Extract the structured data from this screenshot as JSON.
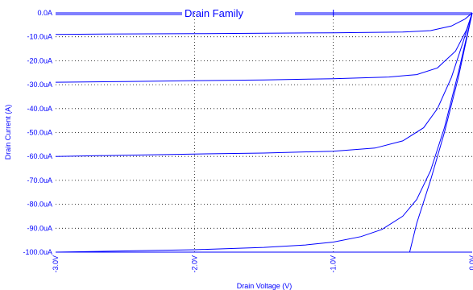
{
  "chart_data": {
    "type": "line",
    "title": "Drain Family",
    "xlabel": "Drain Voltage (V)",
    "ylabel": "Drain Current (A)",
    "xlim": [
      -3.0,
      0.0
    ],
    "ylim": [
      -100.0,
      0.0
    ],
    "x_ticks": [
      {
        "value": -3.0,
        "label": "-3.0V"
      },
      {
        "value": -2.0,
        "label": "-2.0V"
      },
      {
        "value": -1.0,
        "label": "-1.0V"
      },
      {
        "value": 0.0,
        "label": "0.0V"
      }
    ],
    "y_ticks": [
      {
        "value": 0,
        "label": "0.0A"
      },
      {
        "value": -10,
        "label": "-10.0uA"
      },
      {
        "value": -20,
        "label": "-20.0uA"
      },
      {
        "value": -30,
        "label": "-30.0uA"
      },
      {
        "value": -40,
        "label": "-40.0uA"
      },
      {
        "value": -50,
        "label": "-50.0uA"
      },
      {
        "value": -60,
        "label": "-60.0uA"
      },
      {
        "value": -70,
        "label": "-70.0uA"
      },
      {
        "value": -80,
        "label": "-80.0uA"
      },
      {
        "value": -90,
        "label": "-90.0uA"
      },
      {
        "value": -100,
        "label": "-100.0uA"
      }
    ],
    "grid": true,
    "grid_style": "dotted",
    "line_color": "#0000ff",
    "series": [
      {
        "x": [
          -3.0,
          -2.5,
          -2.0,
          -1.5,
          -1.0,
          -0.5,
          -0.3,
          -0.15,
          -0.05,
          0.0
        ],
        "y": [
          -9.0,
          -8.8,
          -8.7,
          -8.5,
          -8.3,
          -8.0,
          -7.4,
          -5.5,
          -2.5,
          0.0
        ]
      },
      {
        "x": [
          -3.0,
          -2.5,
          -2.0,
          -1.5,
          -1.0,
          -0.6,
          -0.4,
          -0.25,
          -0.12,
          -0.04,
          0.0
        ],
        "y": [
          -29.0,
          -28.7,
          -28.3,
          -28.0,
          -27.5,
          -26.8,
          -25.8,
          -23.0,
          -16.0,
          -7.0,
          0.0
        ]
      },
      {
        "x": [
          -3.0,
          -2.5,
          -2.0,
          -1.5,
          -1.0,
          -0.7,
          -0.5,
          -0.35,
          -0.25,
          -0.15,
          -0.07,
          0.0
        ],
        "y": [
          -60.0,
          -59.5,
          -59.0,
          -58.6,
          -57.8,
          -56.5,
          -53.5,
          -48.0,
          -40.0,
          -27.0,
          -13.0,
          0.0
        ]
      },
      {
        "x": [
          -3.0,
          -2.5,
          -2.0,
          -1.5,
          -1.2,
          -1.0,
          -0.8,
          -0.65,
          -0.5,
          -0.4,
          -0.3,
          -0.2,
          -0.1,
          0.0
        ],
        "y": [
          -100.0,
          -99.5,
          -99.0,
          -98.0,
          -97.0,
          -95.8,
          -93.5,
          -90.5,
          -85.0,
          -78.0,
          -66.0,
          -48.0,
          -25.0,
          0.0
        ]
      },
      {
        "x": [
          -3.0,
          -2.5,
          -2.0,
          -1.5,
          -1.0,
          -0.6,
          -0.45,
          -0.4,
          -0.3,
          -0.2,
          -0.1,
          0.0
        ],
        "y": [
          -100.0,
          -100.0,
          -100.0,
          -100.0,
          -100.0,
          -100.0,
          -100.0,
          -88.0,
          -70.0,
          -50.0,
          -27.0,
          0.0
        ]
      }
    ]
  }
}
